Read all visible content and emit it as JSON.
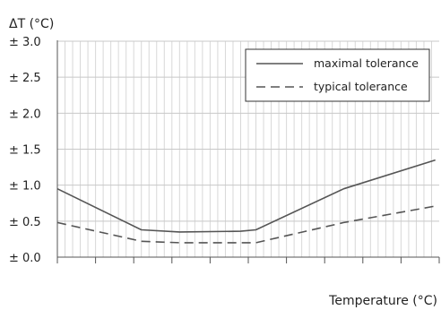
{
  "chart_data": {
    "type": "line",
    "title": "",
    "ylabel": "ΔT (°C)",
    "xlabel": "Temperature (°C)",
    "ylim": [
      0,
      3
    ],
    "xlim": [
      0,
      10
    ],
    "yticks": [
      {
        "value": 0.0,
        "label": "± 0.0"
      },
      {
        "value": 0.5,
        "label": "± 0.5"
      },
      {
        "value": 1.0,
        "label": "± 1.0"
      },
      {
        "value": 1.5,
        "label": "± 1.5"
      },
      {
        "value": 2.0,
        "label": "± 2.0"
      },
      {
        "value": 2.5,
        "label": "± 2.5"
      },
      {
        "value": 3.0,
        "label": "± 3.0"
      }
    ],
    "xticks": [
      0,
      1,
      2,
      3,
      4,
      5,
      6,
      7,
      8,
      9,
      10
    ],
    "x_tick_labels_visible": false,
    "grid": true,
    "legend_position": "top-right",
    "series": [
      {
        "name": "maximal tolerance",
        "style": "solid",
        "color": "#555555",
        "points": [
          [
            0,
            0.95
          ],
          [
            2.2,
            0.38
          ],
          [
            3.2,
            0.35
          ],
          [
            4.8,
            0.36
          ],
          [
            5.2,
            0.38
          ],
          [
            7.5,
            0.95
          ],
          [
            9.9,
            1.35
          ]
        ]
      },
      {
        "name": "typical tolerance",
        "style": "dashed",
        "color": "#555555",
        "points": [
          [
            0,
            0.48
          ],
          [
            2.2,
            0.22
          ],
          [
            3.2,
            0.2
          ],
          [
            4.8,
            0.2
          ],
          [
            5.2,
            0.2
          ],
          [
            7.5,
            0.48
          ],
          [
            9.9,
            0.71
          ]
        ]
      }
    ]
  }
}
